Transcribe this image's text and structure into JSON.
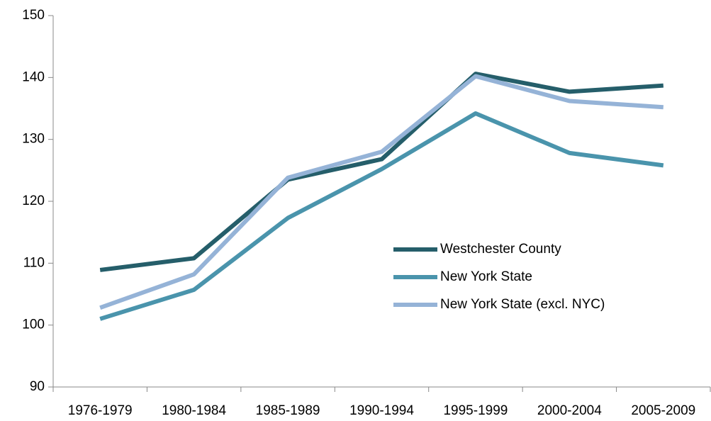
{
  "chart_data": {
    "type": "line",
    "categories": [
      "1976-1979",
      "1980-1984",
      "1985-1989",
      "1990-1994",
      "1995-1999",
      "2000-2004",
      "2005-2009"
    ],
    "series": [
      {
        "name": "Westchester County",
        "color": "#255e6a",
        "values": [
          108.9,
          110.8,
          123.5,
          126.8,
          140.6,
          137.7,
          138.7
        ]
      },
      {
        "name": "New York State",
        "color": "#4a94ac",
        "values": [
          101.0,
          105.7,
          117.3,
          125.2,
          134.2,
          127.8,
          125.8
        ]
      },
      {
        "name": "New York State (excl. NYC)",
        "color": "#95b3d7",
        "values": [
          102.8,
          108.2,
          123.8,
          128.0,
          140.2,
          136.2,
          135.2
        ]
      }
    ],
    "ylim": [
      90,
      150
    ],
    "yticks": [
      90,
      100,
      110,
      120,
      130,
      140,
      150
    ],
    "grid": false,
    "legend": "center-right"
  }
}
